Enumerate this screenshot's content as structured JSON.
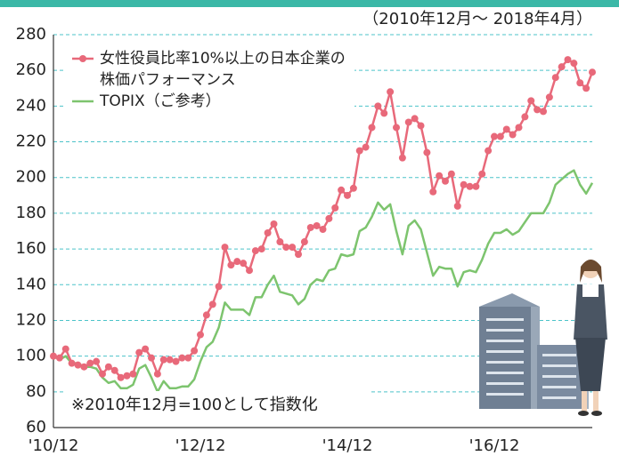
{
  "chart_data": {
    "type": "line",
    "subtitle": "（2010年12月～ 2018年4月）",
    "annotation": "※2010年12月=100として指数化",
    "categories": [
      "'10/12",
      null,
      null,
      null,
      null,
      null,
      null,
      null,
      null,
      null,
      null,
      null,
      null,
      null,
      null,
      null,
      null,
      null,
      null,
      null,
      null,
      null,
      null,
      null,
      "'12/12",
      null,
      null,
      null,
      null,
      null,
      null,
      null,
      null,
      null,
      null,
      null,
      null,
      null,
      null,
      null,
      null,
      null,
      null,
      null,
      null,
      null,
      null,
      null,
      "'14/12",
      null,
      null,
      null,
      null,
      null,
      null,
      null,
      null,
      null,
      null,
      null,
      null,
      null,
      null,
      null,
      null,
      null,
      null,
      null,
      null,
      null,
      null,
      null,
      "'16/12",
      null,
      null,
      null,
      null,
      null,
      null,
      null,
      null,
      null,
      null,
      null,
      null,
      null,
      null,
      null,
      null
    ],
    "series": [
      {
        "name": "女性役員比率10%以上の日本企業の\n株価パフォーマンス",
        "color": "#e8697a",
        "markers": true,
        "values": [
          100,
          99,
          104,
          96,
          95,
          94,
          96,
          97,
          90,
          94,
          92,
          88,
          89,
          90,
          102,
          104,
          99,
          90,
          98,
          98,
          97,
          99,
          99,
          103,
          112,
          123,
          129,
          139,
          161,
          151,
          153,
          152,
          148,
          159,
          160,
          169,
          174,
          164,
          161,
          161,
          157,
          164,
          172,
          173,
          171,
          177,
          183,
          193,
          190,
          194,
          215,
          217,
          228,
          240,
          236,
          248,
          228,
          211,
          231,
          233,
          229,
          214,
          192,
          201,
          198,
          202,
          184,
          196,
          195,
          195,
          202,
          215,
          223,
          223,
          227,
          224,
          228,
          234,
          243,
          238,
          237,
          245,
          256,
          262,
          266,
          264,
          253,
          250,
          259
        ]
      },
      {
        "name": "TOPIX（ご参考）",
        "color": "#7dc46e",
        "markers": false,
        "values": [
          100,
          98,
          100,
          96,
          96,
          94,
          94,
          93,
          88,
          85,
          86,
          82,
          82,
          84,
          93,
          95,
          88,
          80,
          86,
          82,
          82,
          83,
          83,
          87,
          97,
          105,
          108,
          116,
          130,
          126,
          126,
          126,
          123,
          133,
          133,
          140,
          145,
          136,
          135,
          134,
          129,
          132,
          140,
          143,
          142,
          148,
          149,
          157,
          156,
          157,
          170,
          172,
          178,
          186,
          182,
          185,
          170,
          157,
          173,
          176,
          171,
          158,
          145,
          150,
          149,
          149,
          139,
          147,
          148,
          147,
          154,
          163,
          169,
          169,
          171,
          168,
          170,
          175,
          180,
          180,
          180,
          186,
          196,
          199,
          202,
          204,
          196,
          191,
          197
        ]
      }
    ],
    "ylim": [
      60,
      280
    ],
    "yticks": [
      60,
      80,
      100,
      120,
      140,
      160,
      180,
      200,
      220,
      240,
      260,
      280
    ],
    "grid": true
  }
}
